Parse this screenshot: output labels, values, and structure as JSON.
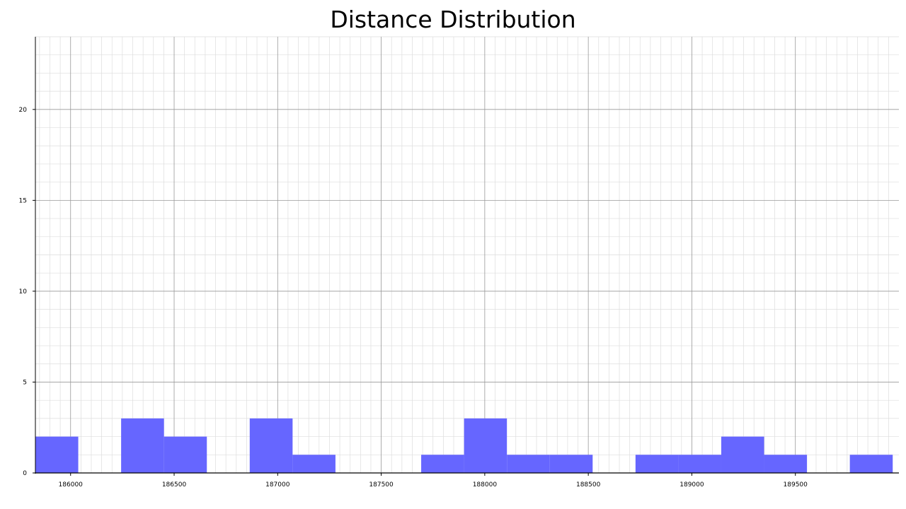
{
  "chart_data": {
    "type": "bar",
    "title": "Distance Distribution",
    "xlabel": "",
    "ylabel": "",
    "xlim": [
      185830,
      190000
    ],
    "ylim": [
      0,
      24
    ],
    "grid": true,
    "bar_color": "#6666ff",
    "bins": [
      {
        "start": 185830,
        "end": 186037,
        "count": 2
      },
      {
        "start": 186037,
        "end": 186244,
        "count": 0
      },
      {
        "start": 186244,
        "end": 186451,
        "count": 3
      },
      {
        "start": 186451,
        "end": 186658,
        "count": 2
      },
      {
        "start": 186658,
        "end": 186865,
        "count": 0
      },
      {
        "start": 186865,
        "end": 187072,
        "count": 3
      },
      {
        "start": 187072,
        "end": 187279,
        "count": 1
      },
      {
        "start": 187279,
        "end": 187486,
        "count": 0
      },
      {
        "start": 187486,
        "end": 187693,
        "count": 0
      },
      {
        "start": 187693,
        "end": 187900,
        "count": 1
      },
      {
        "start": 187900,
        "end": 188107,
        "count": 3
      },
      {
        "start": 188107,
        "end": 188314,
        "count": 1
      },
      {
        "start": 188314,
        "end": 188521,
        "count": 1
      },
      {
        "start": 188521,
        "end": 188728,
        "count": 0
      },
      {
        "start": 188728,
        "end": 188935,
        "count": 1
      },
      {
        "start": 188935,
        "end": 189142,
        "count": 1
      },
      {
        "start": 189142,
        "end": 189349,
        "count": 2
      },
      {
        "start": 189349,
        "end": 189556,
        "count": 1
      },
      {
        "start": 189556,
        "end": 189763,
        "count": 0
      },
      {
        "start": 189763,
        "end": 189970,
        "count": 1
      }
    ],
    "x_ticks": [
      186000,
      186500,
      187000,
      187500,
      188000,
      188500,
      189000,
      189500
    ],
    "y_ticks": [
      0,
      5,
      10,
      15,
      20
    ]
  }
}
